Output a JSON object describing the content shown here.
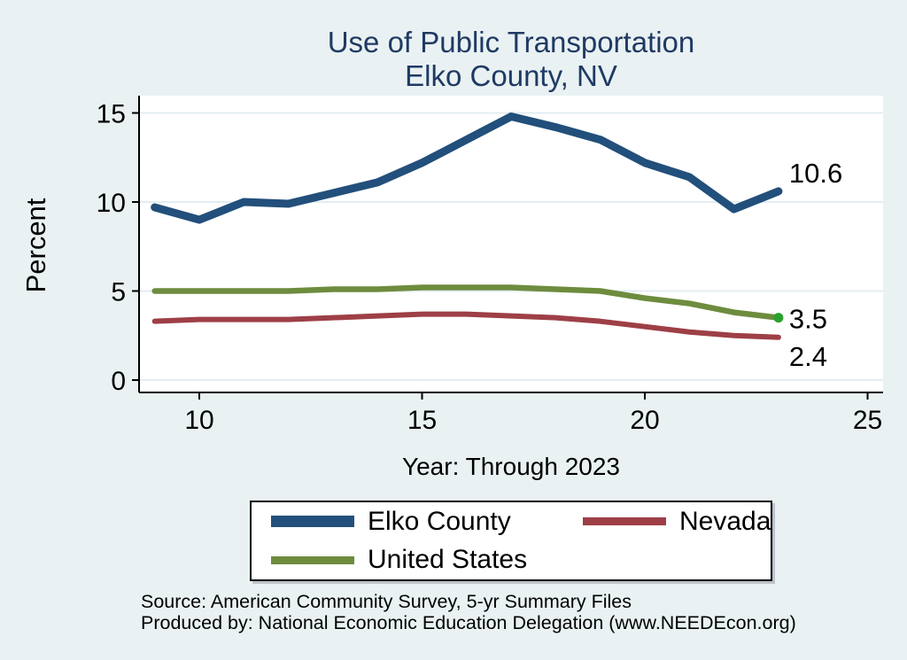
{
  "title": {
    "line1": "Use of Public Transportation",
    "line2": "Elko County, NV"
  },
  "colors": {
    "background": "#e9f1f3",
    "plot_background": "#ffffff",
    "gridline": "#e3edf2",
    "axis": "#000000",
    "title": "#1f3a63",
    "tick_label": "#000000"
  },
  "chart_data": {
    "type": "line",
    "title": "Use of Public Transportation — Elko County, NV",
    "xlabel": "Year: Through 2023",
    "ylabel": "Percent",
    "x": [
      2009,
      2010,
      2011,
      2012,
      2013,
      2014,
      2015,
      2016,
      2017,
      2018,
      2019,
      2020,
      2021,
      2022,
      2023
    ],
    "x_ticks": [
      2010,
      2015,
      2020,
      2025
    ],
    "x_tick_labels": [
      "10",
      "15",
      "20",
      "25"
    ],
    "yticks": [
      0,
      5,
      10,
      15
    ],
    "ylim": [
      0,
      15
    ],
    "grid": true,
    "legend_position": "bottom",
    "series": [
      {
        "name": "Elko County",
        "color": "#224f7b",
        "width": 9,
        "values": [
          9.7,
          9.0,
          10.0,
          9.9,
          10.5,
          11.1,
          12.2,
          13.5,
          14.8,
          14.2,
          13.5,
          12.2,
          11.4,
          9.6,
          10.6
        ],
        "end_label": "10.6"
      },
      {
        "name": "Nevada",
        "color": "#9e3f46",
        "width": 6,
        "values": [
          3.3,
          3.4,
          3.4,
          3.4,
          3.5,
          3.6,
          3.7,
          3.7,
          3.6,
          3.5,
          3.3,
          3.0,
          2.7,
          2.5,
          2.4
        ],
        "end_label": "2.4"
      },
      {
        "name": "United States",
        "color": "#6d8c3e",
        "width": 6.5,
        "values": [
          5.0,
          5.0,
          5.0,
          5.0,
          5.1,
          5.1,
          5.2,
          5.2,
          5.2,
          5.1,
          5.0,
          4.6,
          4.3,
          3.8,
          3.5
        ],
        "end_label": "3.5",
        "end_marker_color": "#2ca02c"
      }
    ]
  },
  "footer": {
    "source": "Source: American Community Survey, 5-yr Summary Files",
    "produced_by": "Produced by: National Economic Education Delegation (www.NEEDEcon.org)"
  }
}
